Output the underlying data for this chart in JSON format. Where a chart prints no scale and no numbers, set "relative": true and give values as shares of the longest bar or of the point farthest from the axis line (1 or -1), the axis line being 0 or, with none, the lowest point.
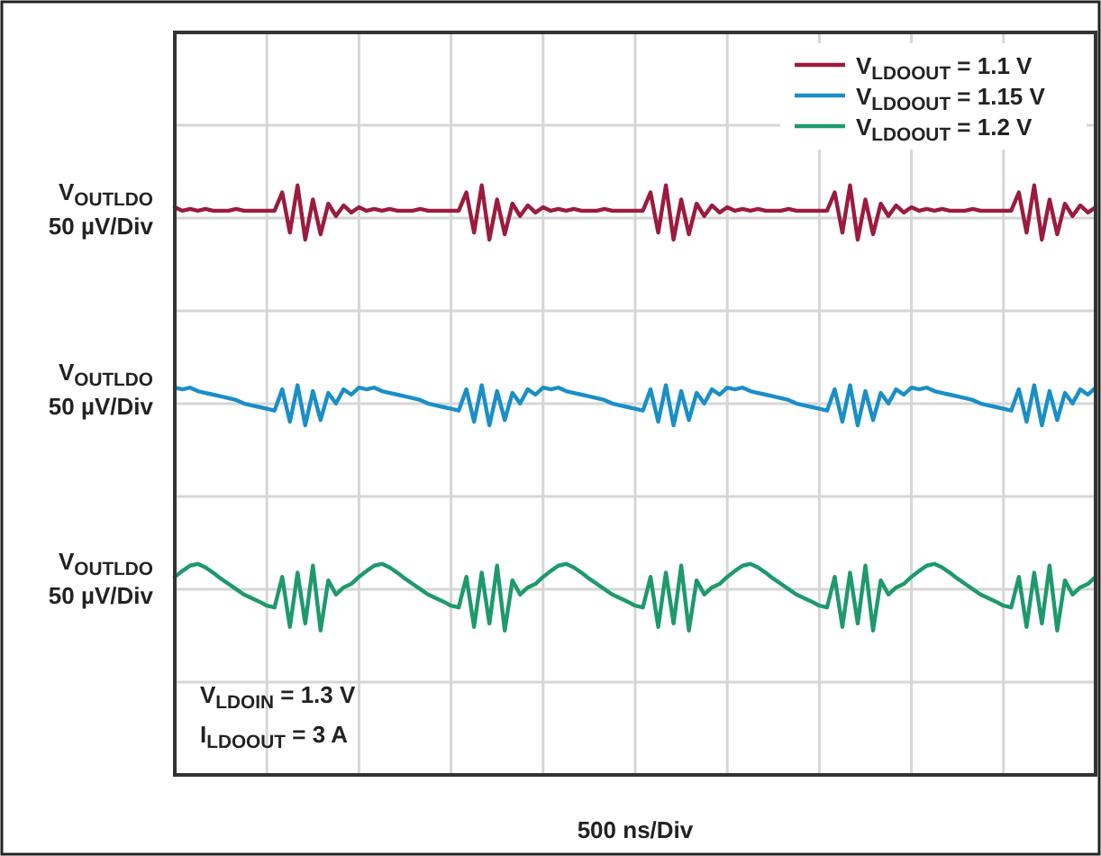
{
  "chart_data": {
    "type": "line",
    "relative": true,
    "xlabel": "500 ns/Div",
    "grid": true,
    "legend": "top right",
    "categories": [
      null,
      null,
      null,
      null,
      null,
      null,
      null,
      null,
      null,
      null,
      null,
      null,
      null,
      null,
      null,
      null,
      null,
      null,
      null,
      null,
      null,
      null,
      null,
      null,
      null,
      null,
      null,
      null,
      null,
      null,
      null,
      null,
      null,
      null,
      null,
      null,
      null,
      null,
      null,
      null,
      null,
      null,
      null,
      null,
      null,
      null,
      null,
      null,
      null,
      null,
      null,
      null,
      null,
      null,
      null,
      null,
      null,
      null,
      null,
      null,
      null,
      null,
      null,
      null,
      null,
      null,
      null,
      null,
      null,
      null,
      null,
      null,
      null,
      null,
      null,
      null,
      null,
      null,
      null,
      null,
      null,
      null,
      null,
      null,
      null,
      null,
      null,
      null,
      null,
      null,
      null,
      null,
      null,
      null,
      null,
      null,
      null,
      null,
      null,
      null,
      null,
      null,
      null,
      null,
      null,
      null,
      null,
      null,
      null,
      null,
      null,
      null,
      null,
      null,
      null,
      null,
      null,
      null,
      null,
      null,
      null
    ],
    "series": [
      {
        "name": "V$_{LDOOUT}$ = 1.1 V",
        "color": "#9b1b3f",
        "values": [
          0.963,
          0.957,
          0.96,
          0.957,
          0.96,
          0.957,
          0.957,
          0.957,
          0.96,
          0.957,
          0.957,
          0.957,
          0.957,
          0.957,
          0.988,
          0.92,
          1,
          0.908,
          0.976,
          0.917,
          0.969,
          0.948,
          0.966,
          0.954,
          0.963,
          0.957,
          0.96,
          0.957,
          0.96,
          0.957,
          0.957,
          0.957,
          0.96,
          0.957,
          0.957,
          0.957,
          0.957,
          0.957,
          0.988,
          0.92,
          1,
          0.908,
          0.976,
          0.917,
          0.969,
          0.948,
          0.966,
          0.954,
          0.963,
          0.957,
          0.96,
          0.957,
          0.96,
          0.957,
          0.957,
          0.957,
          0.96,
          0.957,
          0.957,
          0.957,
          0.957,
          0.957,
          0.988,
          0.92,
          1,
          0.908,
          0.976,
          0.917,
          0.969,
          0.948,
          0.966,
          0.954,
          0.963,
          0.957,
          0.96,
          0.957,
          0.96,
          0.957,
          0.957,
          0.957,
          0.96,
          0.957,
          0.957,
          0.957,
          0.957,
          0.957,
          0.988,
          0.92,
          1,
          0.908,
          0.976,
          0.917,
          0.969,
          0.948,
          0.966,
          0.954,
          0.963,
          0.957,
          0.96,
          0.957,
          0.96,
          0.957,
          0.957,
          0.957,
          0.96,
          0.957,
          0.957,
          0.957,
          0.957,
          0.957,
          0.988,
          0.92,
          1,
          0.908,
          0.976,
          0.917,
          0.969,
          0.948,
          0.966,
          0.954,
          0.963
        ]
      },
      {
        "name": "V$_{LDOOUT}$ = 1.15 V",
        "color": "#1a8fc7",
        "values": [
          0.657,
          0.654,
          0.657,
          0.651,
          0.648,
          0.645,
          0.642,
          0.639,
          0.636,
          0.63,
          0.627,
          0.624,
          0.621,
          0.618,
          0.654,
          0.599,
          0.661,
          0.593,
          0.651,
          0.602,
          0.648,
          0.63,
          0.654,
          0.645,
          0.657,
          0.654,
          0.657,
          0.651,
          0.648,
          0.645,
          0.642,
          0.639,
          0.636,
          0.63,
          0.627,
          0.624,
          0.621,
          0.618,
          0.654,
          0.599,
          0.661,
          0.593,
          0.651,
          0.602,
          0.648,
          0.63,
          0.654,
          0.645,
          0.657,
          0.654,
          0.657,
          0.651,
          0.648,
          0.645,
          0.642,
          0.639,
          0.636,
          0.63,
          0.627,
          0.624,
          0.621,
          0.618,
          0.654,
          0.599,
          0.661,
          0.593,
          0.651,
          0.602,
          0.648,
          0.63,
          0.654,
          0.645,
          0.657,
          0.654,
          0.657,
          0.651,
          0.648,
          0.645,
          0.642,
          0.639,
          0.636,
          0.63,
          0.627,
          0.624,
          0.621,
          0.618,
          0.654,
          0.599,
          0.661,
          0.593,
          0.651,
          0.602,
          0.648,
          0.63,
          0.654,
          0.645,
          0.657,
          0.654,
          0.657,
          0.651,
          0.648,
          0.645,
          0.642,
          0.639,
          0.636,
          0.63,
          0.627,
          0.624,
          0.621,
          0.618,
          0.654,
          0.599,
          0.661,
          0.593,
          0.651,
          0.602,
          0.648,
          0.63,
          0.654,
          0.645,
          0.657
        ]
      },
      {
        "name": "V$_{LDOOUT}$ = 1.2 V",
        "color": "#1e9a6a",
        "values": [
          0.336,
          0.346,
          0.355,
          0.358,
          0.352,
          0.343,
          0.333,
          0.324,
          0.315,
          0.306,
          0.3,
          0.294,
          0.287,
          0.284,
          0.336,
          0.251,
          0.343,
          0.257,
          0.355,
          0.245,
          0.33,
          0.306,
          0.318,
          0.324,
          0.336,
          0.346,
          0.355,
          0.358,
          0.352,
          0.343,
          0.333,
          0.324,
          0.315,
          0.306,
          0.3,
          0.294,
          0.287,
          0.284,
          0.336,
          0.251,
          0.343,
          0.257,
          0.355,
          0.245,
          0.33,
          0.306,
          0.318,
          0.324,
          0.336,
          0.346,
          0.355,
          0.358,
          0.352,
          0.343,
          0.333,
          0.324,
          0.315,
          0.306,
          0.3,
          0.294,
          0.287,
          0.284,
          0.336,
          0.251,
          0.343,
          0.257,
          0.355,
          0.245,
          0.33,
          0.306,
          0.318,
          0.324,
          0.336,
          0.346,
          0.355,
          0.358,
          0.352,
          0.343,
          0.333,
          0.324,
          0.315,
          0.306,
          0.3,
          0.294,
          0.287,
          0.284,
          0.336,
          0.251,
          0.343,
          0.257,
          0.355,
          0.245,
          0.33,
          0.306,
          0.318,
          0.324,
          0.336,
          0.346,
          0.355,
          0.358,
          0.352,
          0.343,
          0.333,
          0.324,
          0.315,
          0.306,
          0.3,
          0.294,
          0.287,
          0.284,
          0.336,
          0.251,
          0.343,
          0.257,
          0.355,
          0.245,
          0.33,
          0.306,
          0.318,
          0.324,
          0.336
        ]
      }
    ],
    "annotations": [
      "V$_{OUTLDO}$\n50 µV/Div",
      "V$_{OUTLDO}$\n50 µV/Div",
      "V$_{OUTLDO}$\n50 µV/Div",
      "V$_{LDOIN}$ = 1.3 V",
      "I$_{LDOOUT}$ = 3 A"
    ]
  }
}
